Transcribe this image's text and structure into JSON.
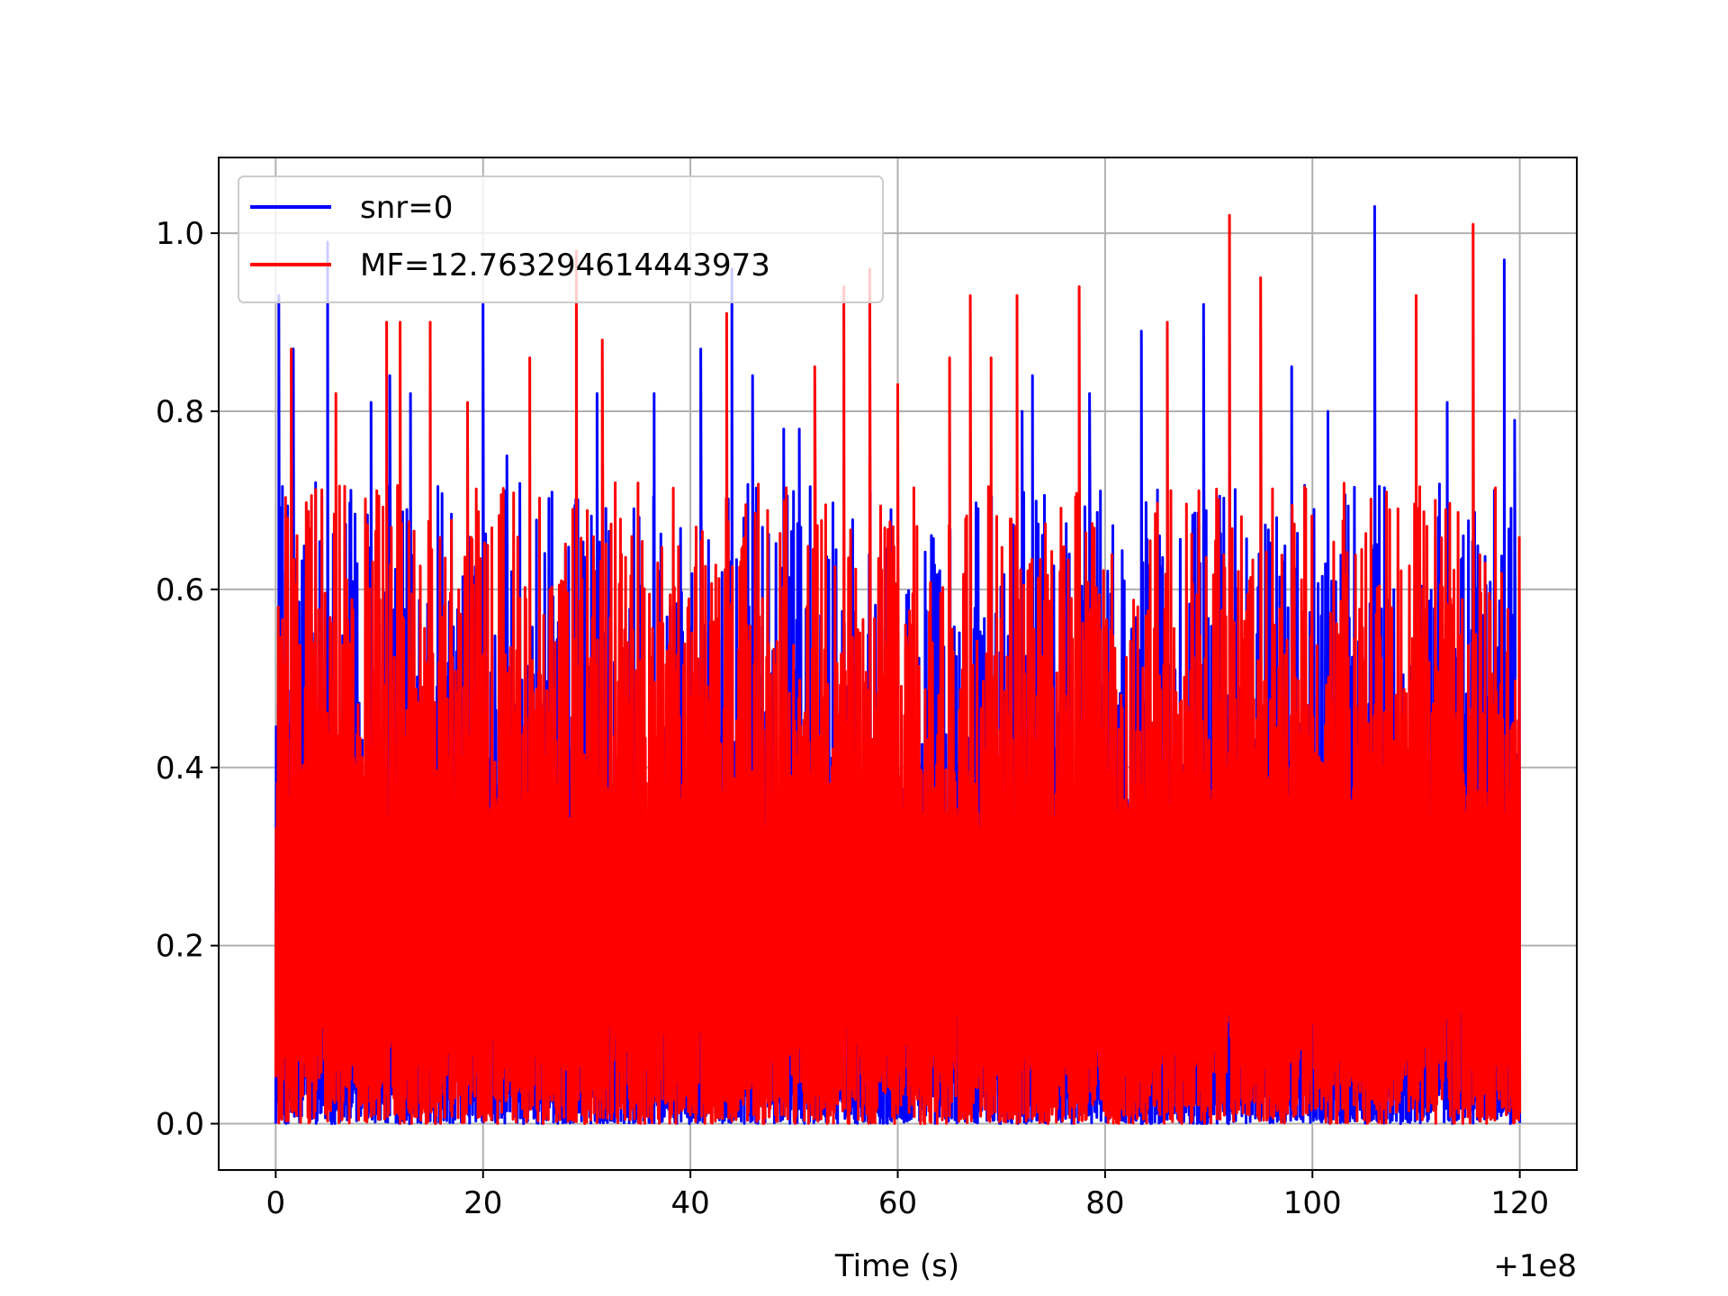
{
  "chart_data": {
    "type": "line",
    "title": "",
    "xlabel": "Time (s)",
    "ylabel": "",
    "x_offset_label": "+1e8",
    "xlim": [
      -5.5,
      125.5
    ],
    "ylim": [
      -0.052,
      1.085
    ],
    "x_ticks": [
      0,
      20,
      40,
      60,
      80,
      100,
      120
    ],
    "x_tick_labels": [
      "0",
      "20",
      "40",
      "60",
      "80",
      "100",
      "120"
    ],
    "y_ticks": [
      0.0,
      0.2,
      0.4,
      0.6,
      0.8,
      1.0
    ],
    "y_tick_labels": [
      "0.0",
      "0.2",
      "0.4",
      "0.6",
      "0.8",
      "1.0"
    ],
    "grid": true,
    "legend_position": "upper-left",
    "x_range": [
      0,
      120
    ],
    "series": [
      {
        "name": "snr=0",
        "color": "#0000ff",
        "peaks": [
          [
            0.3,
            0.93
          ],
          [
            1.7,
            0.87
          ],
          [
            5.0,
            0.99
          ],
          [
            9.2,
            0.81
          ],
          [
            11.0,
            0.84
          ],
          [
            13.0,
            0.82
          ],
          [
            20.0,
            0.92
          ],
          [
            22.3,
            0.75
          ],
          [
            31.0,
            0.82
          ],
          [
            36.5,
            0.82
          ],
          [
            41.0,
            0.87
          ],
          [
            44.0,
            0.96
          ],
          [
            46.0,
            0.84
          ],
          [
            49.0,
            0.78
          ],
          [
            50.5,
            0.78
          ],
          [
            72.0,
            0.8
          ],
          [
            73.0,
            0.84
          ],
          [
            78.5,
            0.82
          ],
          [
            83.5,
            0.89
          ],
          [
            89.5,
            0.92
          ],
          [
            98.0,
            0.85
          ],
          [
            101.5,
            0.8
          ],
          [
            106.0,
            1.03
          ],
          [
            113.0,
            0.81
          ],
          [
            118.5,
            0.97
          ],
          [
            119.5,
            0.79
          ]
        ]
      },
      {
        "name": "MF=12.763294614443973",
        "color": "#ff0000",
        "peaks": [
          [
            1.5,
            0.87
          ],
          [
            5.8,
            0.82
          ],
          [
            10.7,
            0.9
          ],
          [
            12.0,
            0.9
          ],
          [
            14.9,
            0.9
          ],
          [
            18.5,
            0.81
          ],
          [
            24.5,
            0.86
          ],
          [
            29.0,
            0.98
          ],
          [
            31.5,
            0.88
          ],
          [
            43.5,
            0.91
          ],
          [
            52.0,
            0.85
          ],
          [
            54.8,
            0.94
          ],
          [
            57.3,
            0.96
          ],
          [
            60.0,
            0.83
          ],
          [
            65.0,
            0.86
          ],
          [
            67.0,
            0.93
          ],
          [
            69.0,
            0.86
          ],
          [
            71.5,
            0.93
          ],
          [
            77.5,
            0.94
          ],
          [
            86.0,
            0.9
          ],
          [
            92.0,
            1.02
          ],
          [
            95.0,
            0.95
          ],
          [
            110.0,
            0.93
          ],
          [
            115.5,
            1.01
          ]
        ]
      }
    ]
  }
}
